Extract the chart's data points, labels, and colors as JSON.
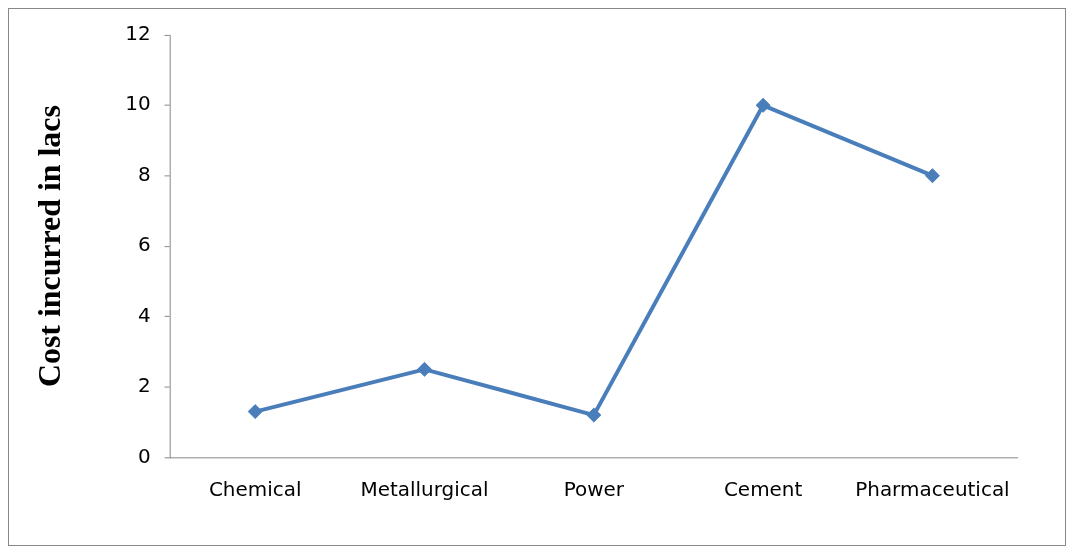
{
  "chart_data": {
    "type": "line",
    "ylabel": "Cost incurred in lacs",
    "categories": [
      "Chemical",
      "Metallurgical",
      "Power",
      "Cement",
      "Pharmaceutical"
    ],
    "series": [
      {
        "color": "#4a7ebb",
        "values": [
          1.3,
          2.5,
          1.2,
          10,
          8
        ]
      }
    ],
    "ylim": [
      0,
      12
    ],
    "yticks": [
      0,
      2,
      4,
      6,
      8,
      10,
      12
    ],
    "grid": false,
    "legend": false,
    "marker": "diamond",
    "line_style": "solid"
  }
}
